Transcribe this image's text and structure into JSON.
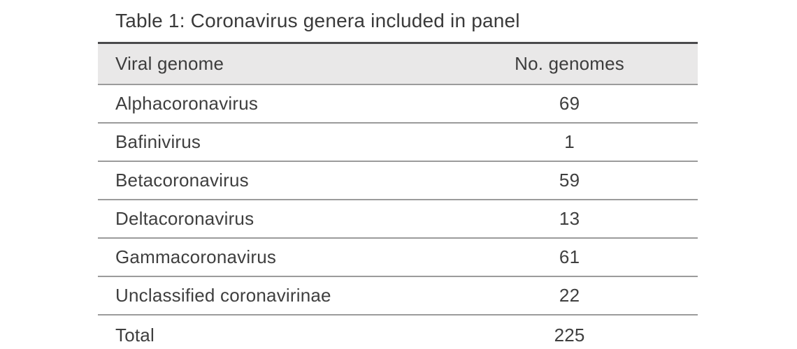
{
  "title": "Table 1: Coronavirus genera included in panel",
  "header": {
    "col1": "Viral genome",
    "col2": "No. genomes"
  },
  "rows": [
    {
      "name": "Alphacoronavirus",
      "count": "69"
    },
    {
      "name": "Bafinivirus",
      "count": "1"
    },
    {
      "name": "Betacoronavirus",
      "count": "59"
    },
    {
      "name": "Deltacoronavirus",
      "count": "13"
    },
    {
      "name": "Gammacoronavirus",
      "count": "61"
    },
    {
      "name": "Unclassified coronavirinae",
      "count": "22"
    }
  ],
  "total": {
    "name": "Total",
    "count": "225"
  },
  "colors": {
    "header_background": "#e9e8e8",
    "text": "#3f3f3f",
    "top_border": "#4a4a4c",
    "row_divider": "#9b9b9b",
    "bottom_border": "#8c8c8c"
  },
  "chart_data": {
    "type": "table",
    "title": "Table 1: Coronavirus genera included in panel",
    "columns": [
      "Viral genome",
      "No. genomes"
    ],
    "rows": [
      [
        "Alphacoronavirus",
        69
      ],
      [
        "Bafinivirus",
        1
      ],
      [
        "Betacoronavirus",
        59
      ],
      [
        "Deltacoronavirus",
        13
      ],
      [
        "Gammacoronavirus",
        61
      ],
      [
        "Unclassified coronavirinae",
        22
      ],
      [
        "Total",
        225
      ]
    ]
  }
}
